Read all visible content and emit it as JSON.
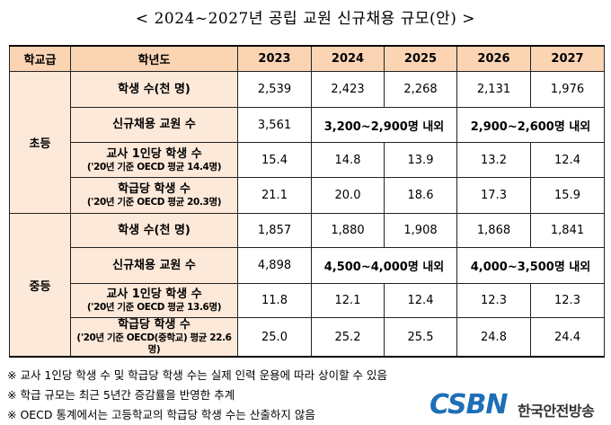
{
  "title": "< 2024~2027년 공립 교원 신규채용 규모(안) >",
  "table": {
    "headers": [
      "학교급",
      "학년도",
      "2023",
      "2024",
      "2025",
      "2026",
      "2027"
    ],
    "elementary": {
      "level": "초등",
      "students": {
        "label": "학생 수(천 명)",
        "values": [
          "2,539",
          "2,423",
          "2,268",
          "2,131",
          "1,976"
        ]
      },
      "hiring": {
        "label": "신규채용 교원 수",
        "v2023": "3,561",
        "v2024_2025": "3,200~2,900명 내외",
        "v2026_2027": "2,900~2,600명 내외"
      },
      "per_teacher": {
        "label": "교사 1인당 학생 수",
        "sub": "('20년 기준 OECD 평균 14.4명)",
        "values": [
          "15.4",
          "14.8",
          "13.9",
          "13.2",
          "12.4"
        ]
      },
      "per_class": {
        "label": "학급당 학생 수",
        "sub": "('20년 기준 OECD 평균 20.3명)",
        "values": [
          "21.1",
          "20.0",
          "18.6",
          "17.3",
          "15.9"
        ]
      }
    },
    "middle": {
      "level": "중등",
      "students": {
        "label": "학생 수(천 명)",
        "values": [
          "1,857",
          "1,880",
          "1,908",
          "1,868",
          "1,841"
        ]
      },
      "hiring": {
        "label": "신규채용 교원 수",
        "v2023": "4,898",
        "v2024_2025": "4,500~4,000명 내외",
        "v2026_2027": "4,000~3,500명 내외"
      },
      "per_teacher": {
        "label": "교사 1인당 학생 수",
        "sub": "('20년 기준 OECD 평균 13.6명)",
        "values": [
          "11.8",
          "12.1",
          "12.4",
          "12.3",
          "12.3"
        ]
      },
      "per_class": {
        "label": "학급당 학생 수",
        "sub": "('20년 기준 OECD(중학교) 평균 22.6명)",
        "values": [
          "25.0",
          "25.2",
          "25.5",
          "24.8",
          "24.4"
        ]
      }
    }
  },
  "notes": [
    "※ 교사 1인당 학생 수 및 학급당 학생 수는 실제 인력 운용에 따라 상이할 수 있음",
    "※ 학급 규모는 최근 5년간 증감률을 반영한 추계",
    "※ OECD 통계에서는 고등학교의 학급당 학생 수는 산출하지 않음"
  ],
  "logo": {
    "mark": "CSBN",
    "name": "한국안전방송",
    "colors": {
      "primary": "#1e6fb8",
      "secondary": "#8a8f96"
    }
  },
  "colors": {
    "header_bg": "#fbd4b4",
    "label_bg": "#fde9d9"
  }
}
